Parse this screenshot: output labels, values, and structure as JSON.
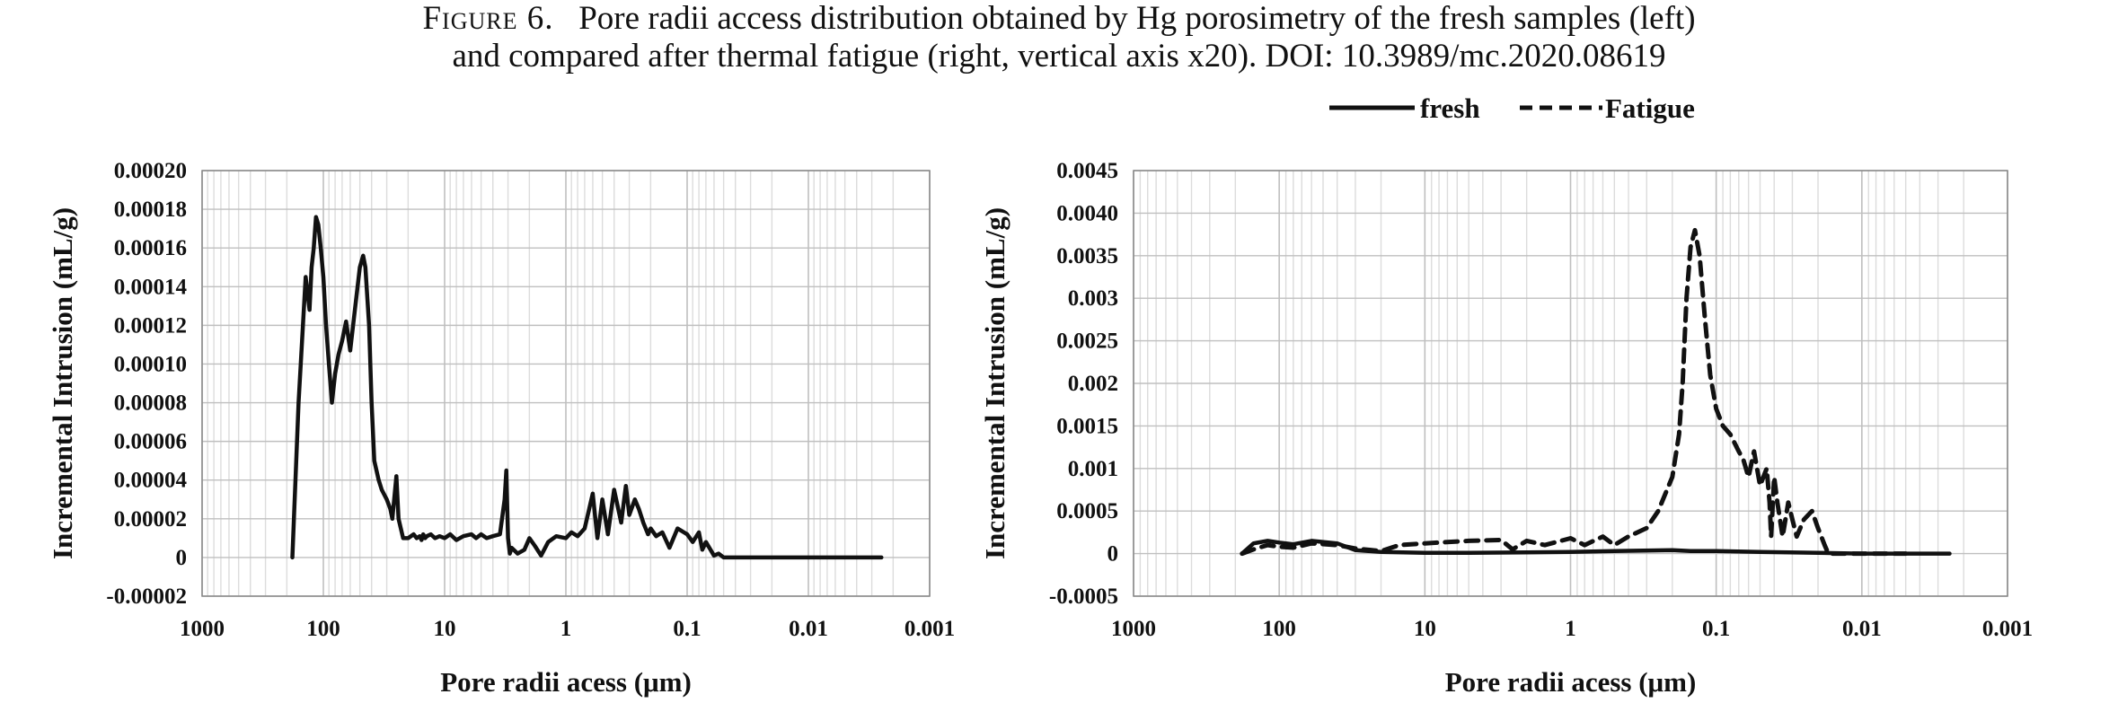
{
  "caption": {
    "figure_label": "Figure 6.",
    "line1": "Pore radii access distribution obtained by Hg porosimetry of the fresh samples (left)",
    "line2": "and compared after thermal fatigue (right, vertical axis x20). DOI: 10.3989/mc.2020.08619"
  },
  "colors": {
    "line": "#111111",
    "grid_major": "#bfbfbf",
    "grid_minor": "#dcdcdc",
    "axis": "#888888"
  },
  "chart_data": [
    {
      "type": "line",
      "title": "",
      "xlabel": "Pore radii acess (μm)",
      "ylabel": "Incremental Intrusion (mL/g)",
      "x_scale": "log",
      "x_reversed": true,
      "xlim": [
        1000,
        0.001
      ],
      "ylim": [
        -2e-05,
        0.0002
      ],
      "grid": true,
      "x_tick_labels": [
        "1000",
        "100",
        "10",
        "1",
        "0.1",
        "0.01",
        "0.001"
      ],
      "y_tick_labels": [
        "0.00020",
        "0.00018",
        "0.00016",
        "0.00014",
        "0.00012",
        "0.00010",
        "0.00008",
        "0.00006",
        "0.00004",
        "0.00002",
        "0",
        "-0.00002"
      ],
      "series": [
        {
          "name": "",
          "style": "solid",
          "x": [
            180,
            160,
            140,
            130,
            125,
            120,
            115,
            110,
            105,
            100,
            95,
            90,
            85,
            80,
            75,
            70,
            65,
            60,
            55,
            50,
            47,
            45,
            42,
            40,
            38,
            35,
            33,
            30,
            28,
            27,
            25,
            24,
            22,
            20,
            18,
            17,
            16,
            15.5,
            15,
            14.5,
            14,
            13,
            12,
            11,
            10,
            9,
            8,
            7,
            6,
            5.5,
            5,
            4.5,
            4,
            3.5,
            3.2,
            3.1,
            3.0,
            2.9,
            2.8,
            2.5,
            2.2,
            2.0,
            1.8,
            1.6,
            1.4,
            1.2,
            1.0,
            0.9,
            0.8,
            0.7,
            0.6,
            0.55,
            0.5,
            0.45,
            0.4,
            0.35,
            0.32,
            0.3,
            0.27,
            0.25,
            0.23,
            0.21,
            0.2,
            0.18,
            0.16,
            0.14,
            0.12,
            0.1,
            0.09,
            0.08,
            0.075,
            0.07,
            0.06,
            0.055,
            0.05,
            0.045,
            0.04,
            0.02,
            0.01,
            0.005,
            0.0025
          ],
          "y": [
            0,
            8e-05,
            0.000145,
            0.000128,
            0.00015,
            0.00016,
            0.000176,
            0.000172,
            0.00016,
            0.000145,
            0.00012,
            0.0001,
            8e-05,
            9.5e-05,
            0.000105,
            0.000112,
            0.000122,
            0.000107,
            0.000128,
            0.00015,
            0.000156,
            0.00015,
            0.00012,
            8e-05,
            5e-05,
            4e-05,
            3.5e-05,
            3e-05,
            2.5e-05,
            2e-05,
            4.2e-05,
            2e-05,
            1e-05,
            1e-05,
            1.2e-05,
            1e-05,
            1.1e-05,
            9e-06,
            1.2e-05,
            1e-05,
            1.1e-05,
            1.2e-05,
            1e-05,
            1.1e-05,
            1e-05,
            1.2e-05,
            9e-06,
            1.1e-05,
            1.2e-05,
            1e-05,
            1.2e-05,
            1e-05,
            1.1e-05,
            1.2e-05,
            3e-05,
            4.5e-05,
            1e-05,
            2e-06,
            5e-06,
            2e-06,
            4e-06,
            1e-05,
            6e-06,
            1e-06,
            8e-06,
            1.1e-05,
            1e-05,
            1.3e-05,
            1.1e-05,
            1.5e-05,
            3.3e-05,
            1e-05,
            3e-05,
            1.2e-05,
            3.5e-05,
            1.8e-05,
            3.7e-05,
            2.2e-05,
            3e-05,
            2.5e-05,
            1.8e-05,
            1.2e-05,
            1.5e-05,
            1.1e-05,
            1.3e-05,
            5e-06,
            1.5e-05,
            1.2e-05,
            8e-06,
            1.3e-05,
            4e-06,
            8e-06,
            1e-06,
            2e-06,
            0.0,
            0.0,
            0.0,
            0.0,
            0.0,
            0.0,
            0.0
          ]
        }
      ]
    },
    {
      "type": "line",
      "title": "",
      "xlabel": "Pore radii acess (μm)",
      "ylabel": "Incremental Intrusion (mL/g)",
      "x_scale": "log",
      "x_reversed": true,
      "xlim": [
        1000,
        0.001
      ],
      "ylim": [
        -0.0005,
        0.0045
      ],
      "grid": true,
      "legend_position": "top",
      "x_tick_labels": [
        "1000",
        "100",
        "10",
        "1",
        "0.1",
        "0.01",
        "0.001"
      ],
      "y_tick_labels": [
        "0.0045",
        "0.0040",
        "0.0035",
        "0.003",
        "0.0025",
        "0.002",
        "0.0015",
        "0.001",
        "0.0005",
        "0",
        "-0.0005"
      ],
      "series": [
        {
          "name": "fresh",
          "style": "solid",
          "x": [
            180,
            150,
            120,
            100,
            80,
            60,
            40,
            30,
            20,
            10,
            5,
            2,
            1,
            0.5,
            0.2,
            0.15,
            0.1,
            0.05,
            0.02,
            0.01,
            0.005,
            0.0025
          ],
          "y": [
            0,
            0.00012,
            0.00015,
            0.00013,
            0.00011,
            0.00015,
            0.00012,
            4e-05,
            2e-05,
            1e-05,
            1e-05,
            1.5e-05,
            2e-05,
            3e-05,
            4e-05,
            3e-05,
            3e-05,
            2e-05,
            1e-05,
            0.0,
            0.0,
            0.0
          ]
        },
        {
          "name": "Fatigue",
          "style": "dashed",
          "x": [
            180,
            150,
            120,
            100,
            80,
            60,
            40,
            30,
            20,
            15,
            10,
            5,
            3,
            2.5,
            2,
            1.5,
            1,
            0.8,
            0.6,
            0.5,
            0.4,
            0.3,
            0.25,
            0.2,
            0.18,
            0.17,
            0.16,
            0.15,
            0.14,
            0.13,
            0.12,
            0.11,
            0.1,
            0.09,
            0.08,
            0.07,
            0.065,
            0.06,
            0.055,
            0.05,
            0.045,
            0.043,
            0.042,
            0.04,
            0.038,
            0.035,
            0.032,
            0.03,
            0.028,
            0.025,
            0.022,
            0.02,
            0.018,
            0.017,
            0.016,
            0.01,
            0.005
          ],
          "y": [
            0,
            5e-05,
            0.0001,
            8e-05,
            7e-05,
            0.00012,
            0.0001,
            6e-05,
            3e-05,
            0.0001,
            0.00012,
            0.00015,
            0.00016,
            5e-05,
            0.00015,
            0.0001,
            0.00018,
            0.0001,
            0.0002,
            0.0001,
            0.0002,
            0.0003,
            0.0005,
            0.0009,
            0.0014,
            0.002,
            0.003,
            0.0036,
            0.0038,
            0.0035,
            0.0028,
            0.0021,
            0.0017,
            0.0015,
            0.0014,
            0.0012,
            0.0011,
            0.0009,
            0.0012,
            0.0008,
            0.001,
            0.0006,
            0.0002,
            0.0009,
            0.0006,
            0.0002,
            0.0006,
            0.0004,
            0.0002,
            0.0004,
            0.0005,
            0.0003,
            0.0001,
            0.0,
            0.0,
            0.0,
            0.0
          ]
        }
      ]
    }
  ]
}
